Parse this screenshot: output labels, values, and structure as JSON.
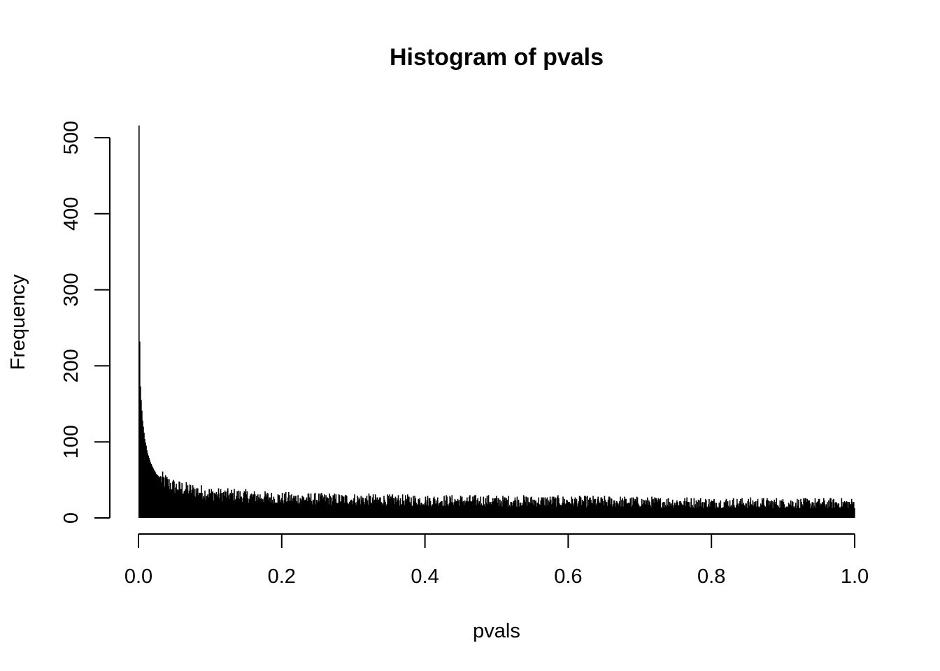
{
  "chart_data": {
    "type": "bar",
    "title": "Histogram of pvals",
    "xlabel": "pvals",
    "ylabel": "Frequency",
    "xlim": [
      0,
      1
    ],
    "ylim": [
      0,
      500
    ],
    "x_ticks": [
      "0.0",
      "0.2",
      "0.4",
      "0.6",
      "0.8",
      "1.0"
    ],
    "y_ticks": [
      "0",
      "100",
      "200",
      "300",
      "400",
      "500"
    ],
    "bin_width": 0.001,
    "bin_range": [
      0,
      1
    ],
    "values_first_bins": [
      516,
      232,
      173,
      155,
      141,
      128,
      120,
      112,
      104,
      99,
      95,
      89,
      85,
      82,
      79,
      76,
      73,
      71,
      69,
      67,
      65,
      63,
      62,
      60,
      58,
      57,
      56,
      55,
      54,
      53
    ],
    "baseline_trend": [
      {
        "x": 0.03,
        "y": 52
      },
      {
        "x": 0.05,
        "y": 41
      },
      {
        "x": 0.1,
        "y": 32
      },
      {
        "x": 0.2,
        "y": 26
      },
      {
        "x": 0.4,
        "y": 23
      },
      {
        "x": 0.6,
        "y": 22
      },
      {
        "x": 0.8,
        "y": 20
      },
      {
        "x": 1.0,
        "y": 19
      }
    ],
    "grid": false,
    "legend": "none",
    "bar_color": "#000000"
  }
}
